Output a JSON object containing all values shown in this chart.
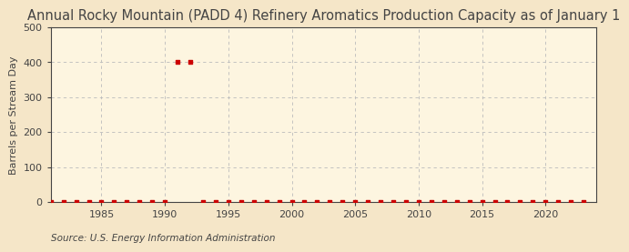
{
  "title": "Annual Rocky Mountain (PADD 4) Refinery Aromatics Production Capacity as of January 1",
  "ylabel": "Barrels per Stream Day",
  "source": "Source: U.S. Energy Information Administration",
  "background_color": "#f5e6c8",
  "plot_background_color": "#fdf5e0",
  "xmin": 1981,
  "xmax": 2024,
  "ymin": 0,
  "ymax": 500,
  "yticks": [
    0,
    100,
    200,
    300,
    400,
    500
  ],
  "xticks": [
    1985,
    1990,
    1995,
    2000,
    2005,
    2010,
    2015,
    2020
  ],
  "data_years": [
    1981,
    1982,
    1983,
    1984,
    1985,
    1986,
    1987,
    1988,
    1989,
    1990,
    1991,
    1992,
    1993,
    1994,
    1995,
    1996,
    1997,
    1998,
    1999,
    2000,
    2001,
    2002,
    2003,
    2004,
    2005,
    2006,
    2007,
    2008,
    2009,
    2010,
    2011,
    2012,
    2013,
    2014,
    2015,
    2016,
    2017,
    2018,
    2019,
    2020,
    2021,
    2022,
    2023
  ],
  "data_values": [
    0,
    0,
    0,
    0,
    0,
    0,
    0,
    0,
    0,
    0,
    400,
    400,
    0,
    0,
    0,
    0,
    0,
    0,
    0,
    0,
    0,
    0,
    0,
    0,
    0,
    0,
    0,
    0,
    0,
    0,
    0,
    0,
    0,
    0,
    0,
    0,
    0,
    0,
    0,
    0,
    0,
    0,
    0
  ],
  "marker_color": "#cc0000",
  "grid_color": "#bbbbbb",
  "axis_color": "#444444",
  "title_fontsize": 10.5,
  "label_fontsize": 8,
  "tick_fontsize": 8,
  "source_fontsize": 7.5,
  "marker_size": 9
}
